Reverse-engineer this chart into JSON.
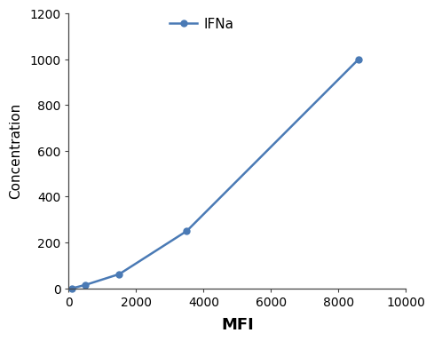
{
  "x": [
    100,
    500,
    1500,
    3500,
    8600
  ],
  "y": [
    0,
    15,
    62,
    250,
    1000
  ],
  "line_color": "#4a7ab5",
  "marker": "o",
  "marker_size": 5,
  "legend_label": "IFNa",
  "xlabel": "MFI",
  "ylabel": "Concentration",
  "xlim": [
    0,
    10000
  ],
  "ylim": [
    0,
    1200
  ],
  "xticks": [
    0,
    2000,
    4000,
    6000,
    8000,
    10000
  ],
  "yticks": [
    0,
    200,
    400,
    600,
    800,
    1000,
    1200
  ],
  "xlabel_fontsize": 13,
  "ylabel_fontsize": 11,
  "tick_fontsize": 10,
  "legend_fontsize": 11,
  "background_color": "#ffffff"
}
